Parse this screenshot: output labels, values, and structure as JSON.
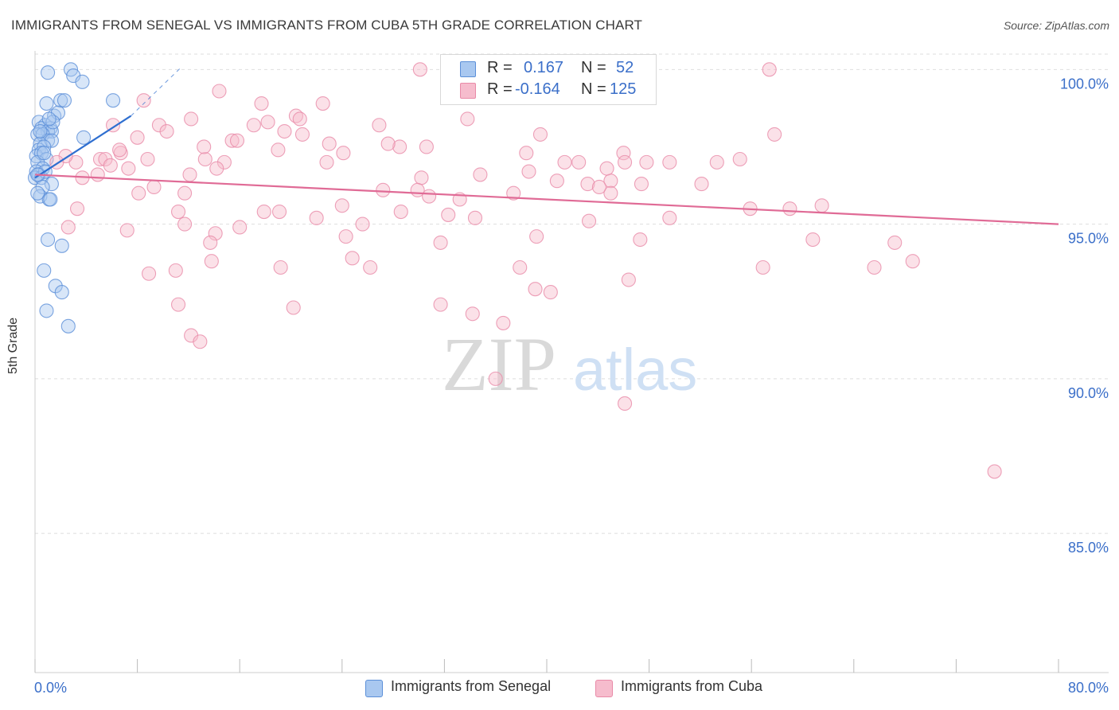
{
  "title": "IMMIGRANTS FROM SENEGAL VS IMMIGRANTS FROM CUBA 5TH GRADE CORRELATION CHART",
  "source": "Source: ZipAtlas.com",
  "watermark": {
    "zip": "ZIP",
    "atlas": "atlas"
  },
  "colors": {
    "senegal_fill": "#a9c8f0",
    "senegal_stroke": "#5b8fd8",
    "senegal_line": "#2f6fd0",
    "cuba_fill": "#f6bccd",
    "cuba_stroke": "#e98aa8",
    "cuba_line": "#e06b96",
    "tick_label": "#3b6fc9",
    "grid": "#dedede"
  },
  "legend": {
    "rows": [
      {
        "r_label": "R =",
        "r_value": "0.167",
        "n_label": "N =",
        "n_value": "52"
      },
      {
        "r_label": "R =",
        "r_value": "-0.164",
        "n_label": "N =",
        "n_value": "125"
      }
    ]
  },
  "chart_data": {
    "type": "scatter",
    "title": "IMMIGRANTS FROM SENEGAL VS IMMIGRANTS FROM CUBA 5TH GRADE CORRELATION CHART",
    "xlabel": "",
    "ylabel": "5th Grade",
    "xlim": [
      0,
      80
    ],
    "ylim": [
      80.5,
      100.6
    ],
    "x_tick_labels": [
      "0.0%",
      "80.0%"
    ],
    "y_ticks": [
      100,
      95,
      90,
      85
    ],
    "y_tick_labels": [
      "100.0%",
      "95.0%",
      "90.0%",
      "85.0%"
    ],
    "legend_position": "top-center",
    "series": [
      {
        "name": "Immigrants from Senegal",
        "R": 0.167,
        "N": 52,
        "trend": {
          "x": [
            0,
            7.5
          ],
          "y": [
            96.5,
            98.5
          ],
          "dashed_to": [
            11.5,
            100.1
          ]
        },
        "points": [
          [
            1.0,
            99.9
          ],
          [
            2.8,
            100.0
          ],
          [
            3.0,
            99.8
          ],
          [
            3.7,
            99.6
          ],
          [
            2.0,
            99.0
          ],
          [
            2.3,
            99.0
          ],
          [
            6.1,
            99.0
          ],
          [
            0.9,
            98.9
          ],
          [
            1.5,
            98.5
          ],
          [
            1.8,
            98.6
          ],
          [
            0.3,
            98.3
          ],
          [
            0.8,
            98.2
          ],
          [
            1.2,
            98.1
          ],
          [
            0.5,
            98.1
          ],
          [
            1.0,
            98.0
          ],
          [
            0.2,
            97.9
          ],
          [
            1.3,
            98.0
          ],
          [
            0.6,
            97.9
          ],
          [
            3.8,
            97.8
          ],
          [
            1.0,
            97.7
          ],
          [
            0.4,
            97.6
          ],
          [
            1.3,
            97.7
          ],
          [
            0.3,
            97.4
          ],
          [
            0.7,
            97.5
          ],
          [
            0.1,
            97.2
          ],
          [
            0.5,
            97.3
          ],
          [
            0.9,
            97.1
          ],
          [
            0.2,
            97.0
          ],
          [
            0.6,
            96.8
          ],
          [
            0.1,
            96.7
          ],
          [
            0.3,
            96.6
          ],
          [
            0.0,
            96.5
          ],
          [
            0.5,
            96.5
          ],
          [
            1.3,
            96.3
          ],
          [
            0.6,
            96.2
          ],
          [
            0.4,
            95.9
          ],
          [
            1.1,
            95.8
          ],
          [
            1.2,
            95.8
          ],
          [
            1.0,
            94.5
          ],
          [
            2.1,
            94.3
          ],
          [
            0.7,
            93.5
          ],
          [
            1.6,
            93.0
          ],
          [
            2.1,
            92.8
          ],
          [
            0.9,
            92.2
          ],
          [
            2.6,
            91.7
          ],
          [
            0.2,
            96.0
          ],
          [
            0.8,
            96.7
          ],
          [
            1.4,
            98.3
          ],
          [
            0.4,
            98.0
          ],
          [
            0.7,
            97.3
          ],
          [
            0.2,
            96.6
          ],
          [
            1.1,
            98.4
          ]
        ]
      },
      {
        "name": "Immigrants from Cuba",
        "R": -0.164,
        "N": 125,
        "trend": {
          "x": [
            0,
            80
          ],
          "y": [
            96.6,
            95.0
          ]
        },
        "points": [
          [
            30.1,
            100.0
          ],
          [
            57.4,
            100.0
          ],
          [
            14.4,
            99.3
          ],
          [
            8.5,
            99.0
          ],
          [
            17.7,
            98.9
          ],
          [
            22.5,
            98.9
          ],
          [
            20.4,
            98.5
          ],
          [
            12.2,
            98.4
          ],
          [
            33.8,
            98.4
          ],
          [
            6.1,
            98.2
          ],
          [
            9.7,
            98.2
          ],
          [
            17.1,
            98.2
          ],
          [
            26.9,
            98.2
          ],
          [
            10.3,
            98.0
          ],
          [
            19.5,
            98.0
          ],
          [
            20.9,
            97.9
          ],
          [
            39.5,
            97.9
          ],
          [
            57.8,
            97.9
          ],
          [
            8.0,
            97.8
          ],
          [
            15.4,
            97.7
          ],
          [
            23.0,
            97.6
          ],
          [
            28.5,
            97.5
          ],
          [
            30.6,
            97.5
          ],
          [
            19.0,
            97.4
          ],
          [
            24.1,
            97.3
          ],
          [
            38.4,
            97.3
          ],
          [
            46.0,
            97.3
          ],
          [
            6.7,
            97.3
          ],
          [
            8.8,
            97.1
          ],
          [
            13.3,
            97.1
          ],
          [
            5.1,
            97.1
          ],
          [
            3.2,
            97.0
          ],
          [
            2.4,
            97.2
          ],
          [
            5.5,
            97.1
          ],
          [
            14.8,
            97.0
          ],
          [
            22.8,
            97.0
          ],
          [
            41.4,
            97.0
          ],
          [
            42.5,
            97.0
          ],
          [
            47.8,
            97.0
          ],
          [
            49.6,
            97.0
          ],
          [
            53.3,
            97.0
          ],
          [
            55.1,
            97.1
          ],
          [
            1.7,
            97.0
          ],
          [
            7.3,
            96.8
          ],
          [
            14.2,
            96.8
          ],
          [
            12.1,
            96.6
          ],
          [
            3.7,
            96.5
          ],
          [
            4.9,
            96.6
          ],
          [
            30.2,
            96.5
          ],
          [
            34.8,
            96.6
          ],
          [
            40.8,
            96.4
          ],
          [
            45.0,
            96.4
          ],
          [
            43.2,
            96.3
          ],
          [
            27.2,
            96.1
          ],
          [
            29.9,
            96.1
          ],
          [
            37.4,
            96.0
          ],
          [
            8.1,
            96.0
          ],
          [
            11.7,
            96.0
          ],
          [
            30.8,
            95.9
          ],
          [
            24.0,
            95.6
          ],
          [
            33.2,
            95.8
          ],
          [
            3.3,
            95.5
          ],
          [
            11.2,
            95.4
          ],
          [
            17.9,
            95.4
          ],
          [
            2.6,
            94.9
          ],
          [
            7.2,
            94.8
          ],
          [
            11.7,
            95.0
          ],
          [
            14.1,
            94.7
          ],
          [
            16.0,
            94.9
          ],
          [
            24.3,
            94.6
          ],
          [
            25.6,
            95.0
          ],
          [
            28.6,
            95.4
          ],
          [
            32.3,
            95.3
          ],
          [
            34.4,
            95.2
          ],
          [
            47.3,
            94.5
          ],
          [
            60.8,
            94.5
          ],
          [
            13.7,
            94.4
          ],
          [
            31.7,
            94.4
          ],
          [
            19.1,
            95.4
          ],
          [
            22.0,
            95.2
          ],
          [
            13.8,
            93.8
          ],
          [
            19.2,
            93.6
          ],
          [
            24.8,
            93.9
          ],
          [
            26.2,
            93.6
          ],
          [
            11.0,
            93.5
          ],
          [
            8.9,
            93.4
          ],
          [
            37.9,
            93.6
          ],
          [
            39.1,
            92.9
          ],
          [
            40.3,
            92.8
          ],
          [
            31.7,
            92.4
          ],
          [
            34.2,
            92.1
          ],
          [
            36.6,
            91.8
          ],
          [
            11.2,
            92.4
          ],
          [
            12.2,
            91.4
          ],
          [
            12.9,
            91.2
          ],
          [
            20.2,
            92.3
          ],
          [
            36.0,
            90.0
          ],
          [
            46.1,
            89.2
          ],
          [
            46.4,
            93.2
          ],
          [
            56.9,
            93.6
          ],
          [
            65.6,
            93.6
          ],
          [
            68.6,
            93.8
          ],
          [
            67.2,
            94.4
          ],
          [
            75.0,
            87.0
          ],
          [
            47.4,
            96.3
          ],
          [
            52.1,
            96.3
          ],
          [
            55.9,
            95.5
          ],
          [
            61.5,
            95.6
          ],
          [
            59.0,
            95.5
          ],
          [
            45.0,
            96.0
          ],
          [
            49.6,
            95.2
          ],
          [
            44.7,
            96.8
          ],
          [
            46.1,
            97.0
          ],
          [
            38.6,
            96.7
          ],
          [
            6.6,
            97.4
          ],
          [
            15.8,
            97.7
          ],
          [
            18.2,
            98.3
          ],
          [
            20.7,
            98.4
          ],
          [
            13.2,
            97.5
          ],
          [
            27.6,
            97.6
          ],
          [
            5.9,
            96.9
          ],
          [
            9.3,
            96.2
          ],
          [
            39.2,
            94.6
          ],
          [
            44.1,
            96.2
          ],
          [
            43.3,
            95.1
          ]
        ]
      }
    ]
  }
}
